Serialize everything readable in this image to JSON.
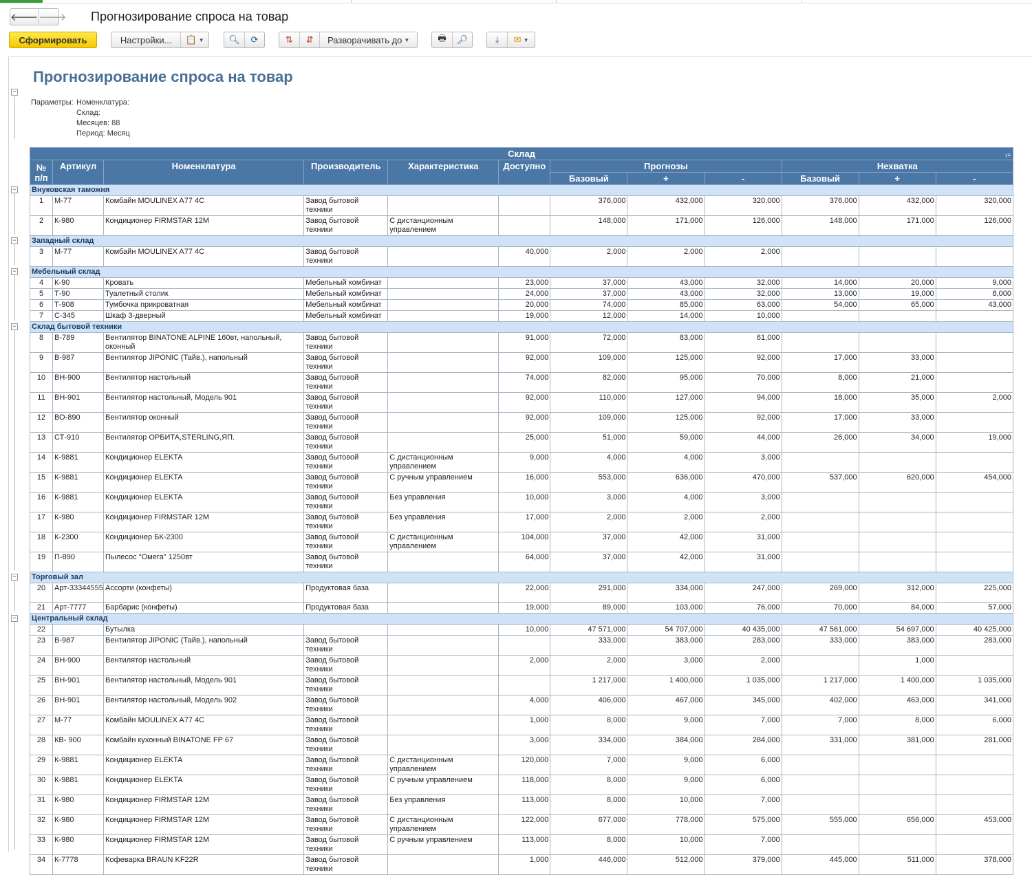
{
  "window": {
    "title": "Прогнозирование спроса на товар",
    "back": "🡐",
    "forward": "🡒"
  },
  "toolbar": {
    "generate_label": "Сформировать",
    "settings_label": "Настройки...",
    "expand_label": "Разворачивать до",
    "icons": [
      "find-icon",
      "find-next-icon",
      "sort-asc-icon",
      "sort-desc-icon",
      "print-icon",
      "preview-icon",
      "save-icon",
      "mail-icon",
      "variants-icon"
    ]
  },
  "report": {
    "title": "Прогнозирование спроса на товар",
    "params_label": "Параметры:",
    "params": [
      "Номенклатура:",
      "Склад:",
      "Месяцев: 88",
      "Период: Месяц"
    ]
  },
  "table": {
    "group_header": "Склад",
    "headers": {
      "num": "№ п/п",
      "article": "Артикул",
      "name": "Номенклатура",
      "maker": "Производитель",
      "char": "Характеристика",
      "avail": "Доступно",
      "forecast": "Прогнозы",
      "shortage": "Нехватка",
      "base": "Базовый",
      "plus": "+",
      "minus": "-"
    },
    "groups": [
      {
        "name": "Внуковская таможня",
        "rows": [
          [
            "1",
            "М-77",
            "Комбайн MOULINEX  A77 4C",
            "Завод бытовой техники",
            "",
            "",
            "376,000",
            "432,000",
            "320,000",
            "376,000",
            "432,000",
            "320,000"
          ],
          [
            "2",
            "К-980",
            "Кондиционер FIRMSTAR 12M",
            "Завод бытовой техники",
            "С дистанционным управлением",
            "",
            "148,000",
            "171,000",
            "126,000",
            "148,000",
            "171,000",
            "126,000"
          ]
        ]
      },
      {
        "name": "Западный склад",
        "rows": [
          [
            "3",
            "М-77",
            "Комбайн MOULINEX  A77 4C",
            "Завод бытовой техники",
            "",
            "40,000",
            "2,000",
            "2,000",
            "2,000",
            "",
            "",
            ""
          ]
        ]
      },
      {
        "name": "Мебельный склад",
        "rows": [
          [
            "4",
            "К-90",
            "Кровать",
            "Мебельный комбинат",
            "",
            "23,000",
            "37,000",
            "43,000",
            "32,000",
            "14,000",
            "20,000",
            "9,000"
          ],
          [
            "5",
            "Т-90",
            "Туалетный столик",
            "Мебельный комбинат",
            "",
            "24,000",
            "37,000",
            "43,000",
            "32,000",
            "13,000",
            "19,000",
            "8,000"
          ],
          [
            "6",
            "Т-908",
            "Тумбочка прикроватная",
            "Мебельный комбинат",
            "",
            "20,000",
            "74,000",
            "85,000",
            "63,000",
            "54,000",
            "65,000",
            "43,000"
          ],
          [
            "7",
            "С-345",
            "Шкаф 3-дверный",
            "Мебельный комбинат",
            "",
            "19,000",
            "12,000",
            "14,000",
            "10,000",
            "",
            "",
            ""
          ]
        ]
      },
      {
        "name": "Склад бытовой техники",
        "rows": [
          [
            "8",
            "В-789",
            "Вентилятор BINATONE ALPINE 160вт, напольный, оконный",
            "Завод бытовой техники",
            "",
            "91,000",
            "72,000",
            "83,000",
            "61,000",
            "",
            "",
            ""
          ],
          [
            "9",
            "В-987",
            "Вентилятор JIPONIC (Тайв.), напольный",
            "Завод бытовой техники",
            "",
            "92,000",
            "109,000",
            "125,000",
            "92,000",
            "17,000",
            "33,000",
            ""
          ],
          [
            "10",
            "ВН-900",
            "Вентилятор настольный",
            "Завод бытовой техники",
            "",
            "74,000",
            "82,000",
            "95,000",
            "70,000",
            "8,000",
            "21,000",
            ""
          ],
          [
            "11",
            "ВН-901",
            "Вентилятор настольный, Модель 901",
            "Завод бытовой техники",
            "",
            "92,000",
            "110,000",
            "127,000",
            "94,000",
            "18,000",
            "35,000",
            "2,000"
          ],
          [
            "12",
            "ВО-890",
            "Вентилятор оконный",
            "Завод бытовой техники",
            "",
            "92,000",
            "109,000",
            "125,000",
            "92,000",
            "17,000",
            "33,000",
            ""
          ],
          [
            "13",
            "СТ-910",
            "Вентилятор ОРБИТА,STERLING,ЯП.",
            "Завод бытовой техники",
            "",
            "25,000",
            "51,000",
            "59,000",
            "44,000",
            "26,000",
            "34,000",
            "19,000"
          ],
          [
            "14",
            "К-9881",
            "Кондиционер ELEKTA",
            "Завод бытовой техники",
            "С дистанционным управлением",
            "9,000",
            "4,000",
            "4,000",
            "3,000",
            "",
            "",
            ""
          ],
          [
            "15",
            "К-9881",
            "Кондиционер ELEKTA",
            "Завод бытовой техники",
            "С ручным управлением",
            "16,000",
            "553,000",
            "636,000",
            "470,000",
            "537,000",
            "620,000",
            "454,000"
          ],
          [
            "16",
            "К-9881",
            "Кондиционер ELEKTA",
            "Завод бытовой техники",
            "Без управления",
            "10,000",
            "3,000",
            "4,000",
            "3,000",
            "",
            "",
            ""
          ],
          [
            "17",
            "К-980",
            "Кондиционер FIRMSTAR 12M",
            "Завод бытовой техники",
            "Без управления",
            "17,000",
            "2,000",
            "2,000",
            "2,000",
            "",
            "",
            ""
          ],
          [
            "18",
            "К-2300",
            "Кондиционер БК-2300",
            "Завод бытовой техники",
            "С дистанционным управлением",
            "104,000",
            "37,000",
            "42,000",
            "31,000",
            "",
            "",
            ""
          ],
          [
            "19",
            "П-890",
            "Пылесос \"Омега\" 1250вт",
            "Завод бытовой техники",
            "",
            "64,000",
            "37,000",
            "42,000",
            "31,000",
            "",
            "",
            ""
          ]
        ]
      },
      {
        "name": "Торговый зал",
        "rows": [
          [
            "20",
            "Арт-33344555",
            "Ассорти (конфеты)",
            "Продуктовая база",
            "",
            "22,000",
            "291,000",
            "334,000",
            "247,000",
            "269,000",
            "312,000",
            "225,000"
          ],
          [
            "21",
            "Арт-7777",
            "Барбарис (конфеты)",
            "Продуктовая база",
            "",
            "19,000",
            "89,000",
            "103,000",
            "76,000",
            "70,000",
            "84,000",
            "57,000"
          ]
        ]
      },
      {
        "name": "Центральный склад",
        "rows": [
          [
            "22",
            "",
            "Бутылка",
            "",
            "",
            "10,000",
            "47 571,000",
            "54 707,000",
            "40 435,000",
            "47 561,000",
            "54 697,000",
            "40 425,000"
          ],
          [
            "23",
            "В-987",
            "Вентилятор JIPONIC (Тайв.), напольный",
            "Завод бытовой техники",
            "",
            "",
            "333,000",
            "383,000",
            "283,000",
            "333,000",
            "383,000",
            "283,000"
          ],
          [
            "24",
            "ВН-900",
            "Вентилятор настольный",
            "Завод бытовой техники",
            "",
            "2,000",
            "2,000",
            "3,000",
            "2,000",
            "",
            "1,000",
            ""
          ],
          [
            "25",
            "ВН-901",
            "Вентилятор настольный, Модель 901",
            "Завод бытовой техники",
            "",
            "",
            "1 217,000",
            "1 400,000",
            "1 035,000",
            "1 217,000",
            "1 400,000",
            "1 035,000"
          ],
          [
            "26",
            "ВН-901",
            "Вентилятор настольный, Модель 902",
            "Завод бытовой техники",
            "",
            "4,000",
            "406,000",
            "467,000",
            "345,000",
            "402,000",
            "463,000",
            "341,000"
          ],
          [
            "27",
            "М-77",
            "Комбайн MOULINEX  A77 4C",
            "Завод бытовой техники",
            "",
            "1,000",
            "8,000",
            "9,000",
            "7,000",
            "7,000",
            "8,000",
            "6,000"
          ],
          [
            "28",
            "КВ- 900",
            "Комбайн кухонный BINATONE FP 67",
            "Завод бытовой техники",
            "",
            "3,000",
            "334,000",
            "384,000",
            "284,000",
            "331,000",
            "381,000",
            "281,000"
          ],
          [
            "29",
            "К-9881",
            "Кондиционер ELEKTA",
            "Завод бытовой техники",
            "С дистанционным управлением",
            "120,000",
            "7,000",
            "9,000",
            "6,000",
            "",
            "",
            ""
          ],
          [
            "30",
            "К-9881",
            "Кондиционер ELEKTA",
            "Завод бытовой техники",
            "С ручным управлением",
            "118,000",
            "8,000",
            "9,000",
            "6,000",
            "",
            "",
            ""
          ],
          [
            "31",
            "К-980",
            "Кондиционер FIRMSTAR 12M",
            "Завод бытовой техники",
            "Без управления",
            "113,000",
            "8,000",
            "10,000",
            "7,000",
            "",
            "",
            ""
          ],
          [
            "32",
            "К-980",
            "Кондиционер FIRMSTAR 12M",
            "Завод бытовой техники",
            "С дистанционным управлением",
            "122,000",
            "677,000",
            "778,000",
            "575,000",
            "555,000",
            "656,000",
            "453,000"
          ],
          [
            "33",
            "К-980",
            "Кондиционер FIRMSTAR 12M",
            "Завод бытовой техники",
            "С ручным управлением",
            "113,000",
            "8,000",
            "10,000",
            "7,000",
            "",
            "",
            ""
          ],
          [
            "34",
            "К-7778",
            "Кофеварка BRAUN KF22R",
            "Завод бытовой техники",
            "",
            "1,000",
            "446,000",
            "512,000",
            "379,000",
            "445,000",
            "511,000",
            "378,000"
          ]
        ]
      }
    ]
  }
}
